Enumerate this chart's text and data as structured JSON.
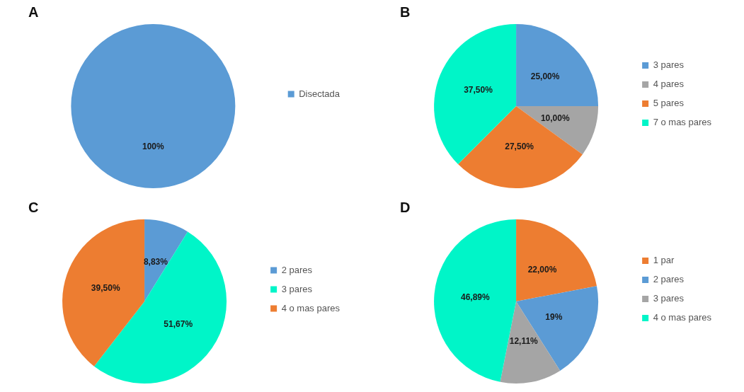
{
  "chart_data": [
    {
      "type": "pie",
      "title": "A",
      "categories": [
        "Disectada"
      ],
      "values": [
        100
      ],
      "colors": [
        "#5b9bd5"
      ],
      "value_labels": [
        "100%"
      ],
      "legend": "right"
    },
    {
      "type": "pie",
      "title": "B",
      "categories": [
        "3 pares",
        "4 pares",
        "5 pares",
        "7 o mas pares"
      ],
      "values": [
        25,
        10,
        27.5,
        37.5
      ],
      "colors": [
        "#5b9bd5",
        "#a5a5a5",
        "#ed7d31",
        "#00f5c8"
      ],
      "value_labels": [
        "25,00%",
        "10,00%",
        "27,50%",
        "37,50%"
      ],
      "legend": "right"
    },
    {
      "type": "pie",
      "title": "C",
      "categories": [
        "2 pares",
        "3 pares",
        "4 o mas pares"
      ],
      "values": [
        8.83,
        51.67,
        39.5
      ],
      "colors": [
        "#5b9bd5",
        "#00f5c8",
        "#ed7d31"
      ],
      "value_labels": [
        "8,83%",
        "51,67%",
        "39,50%"
      ],
      "legend": "right"
    },
    {
      "type": "pie",
      "title": "D",
      "categories": [
        "1 par",
        "2 pares",
        "3 pares",
        "4 o mas pares"
      ],
      "values": [
        22,
        19,
        12.11,
        46.89
      ],
      "colors": [
        "#ed7d31",
        "#5b9bd5",
        "#a5a5a5",
        "#00f5c8"
      ],
      "value_labels": [
        "22,00%",
        "19%",
        "12,11%",
        "46,89%"
      ],
      "legend": "right"
    }
  ]
}
